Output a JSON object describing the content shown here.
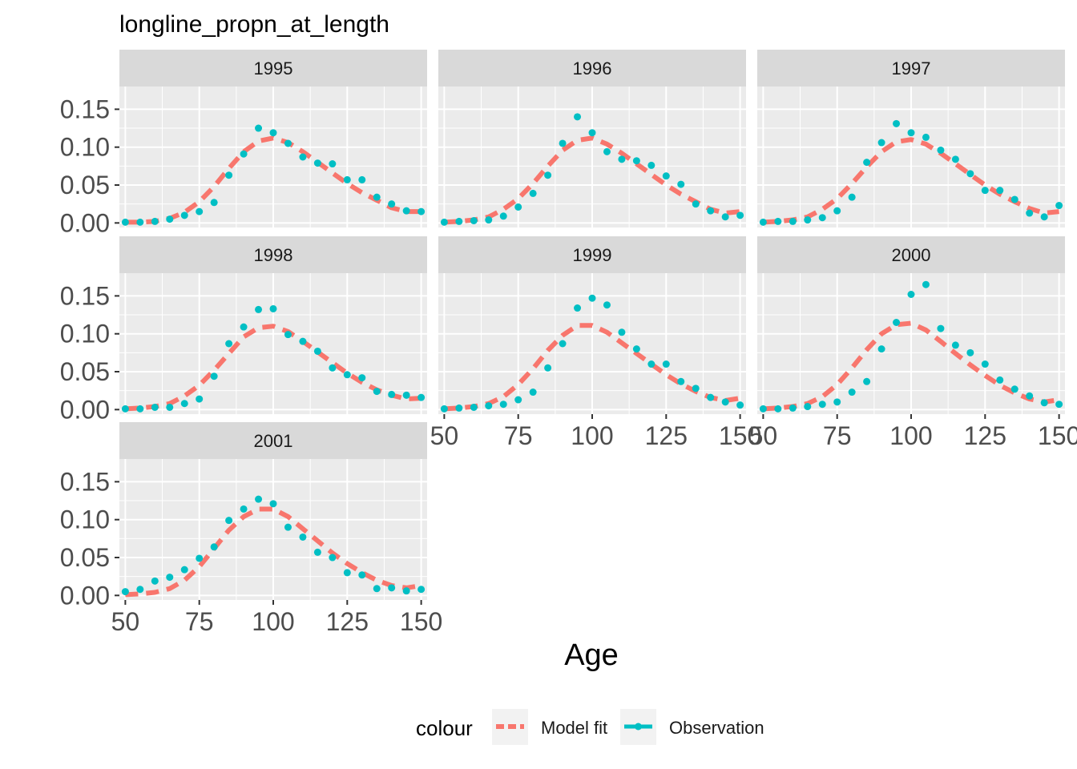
{
  "chart_data": {
    "type": "line",
    "title": "longline_propn_at_length",
    "xlabel": "Age",
    "ylabel": "",
    "xlim": [
      48,
      152
    ],
    "ylim": [
      -0.006,
      0.18
    ],
    "x_ticks": [
      50,
      75,
      100,
      125,
      150
    ],
    "y_ticks": [
      0.0,
      0.05,
      0.1,
      0.15
    ],
    "y_tick_labels": [
      "0.00",
      "0.05",
      "0.10",
      "0.15"
    ],
    "grid": true,
    "legend": {
      "title": "colour",
      "position": "bottom",
      "entries": [
        {
          "label": "Model fit",
          "color": "#F8766D",
          "style": "dashed-line"
        },
        {
          "label": "Observation",
          "color": "#00BFC4",
          "style": "points"
        }
      ]
    },
    "x": [
      50,
      55,
      60,
      65,
      70,
      75,
      80,
      85,
      90,
      95,
      100,
      105,
      110,
      115,
      120,
      125,
      130,
      135,
      140,
      145,
      150
    ],
    "panels": [
      {
        "label": "1995",
        "fit": [
          0.001,
          0.001,
          0.002,
          0.006,
          0.014,
          0.028,
          0.048,
          0.072,
          0.094,
          0.108,
          0.112,
          0.106,
          0.094,
          0.08,
          0.066,
          0.052,
          0.04,
          0.03,
          0.02,
          0.015,
          0.015
        ],
        "obs": [
          0.001,
          0.001,
          0.002,
          0.005,
          0.01,
          0.015,
          0.027,
          0.063,
          0.091,
          0.125,
          0.119,
          0.105,
          0.087,
          0.079,
          0.078,
          0.057,
          0.057,
          0.034,
          0.025,
          0.016,
          0.015
        ]
      },
      {
        "label": "1996",
        "fit": [
          0.001,
          0.002,
          0.004,
          0.008,
          0.018,
          0.032,
          0.052,
          0.075,
          0.096,
          0.109,
          0.112,
          0.104,
          0.092,
          0.078,
          0.064,
          0.05,
          0.038,
          0.028,
          0.018,
          0.013,
          0.015
        ],
        "obs": [
          0.001,
          0.002,
          0.003,
          0.004,
          0.009,
          0.021,
          0.039,
          0.063,
          0.105,
          0.14,
          0.119,
          0.094,
          0.084,
          0.082,
          0.076,
          0.062,
          0.051,
          0.025,
          0.016,
          0.008,
          0.01
        ]
      },
      {
        "label": "1997",
        "fit": [
          0.001,
          0.002,
          0.004,
          0.008,
          0.018,
          0.032,
          0.052,
          0.074,
          0.094,
          0.107,
          0.11,
          0.104,
          0.092,
          0.078,
          0.064,
          0.05,
          0.038,
          0.028,
          0.019,
          0.013,
          0.015
        ],
        "obs": [
          0.001,
          0.002,
          0.002,
          0.004,
          0.007,
          0.016,
          0.034,
          0.08,
          0.106,
          0.131,
          0.119,
          0.113,
          0.096,
          0.084,
          0.065,
          0.043,
          0.043,
          0.031,
          0.013,
          0.008,
          0.023
        ]
      },
      {
        "label": "1998",
        "fit": [
          0.001,
          0.002,
          0.004,
          0.008,
          0.018,
          0.032,
          0.052,
          0.074,
          0.096,
          0.108,
          0.11,
          0.103,
          0.09,
          0.076,
          0.062,
          0.048,
          0.036,
          0.026,
          0.019,
          0.014,
          0.015
        ],
        "obs": [
          0.001,
          0.001,
          0.003,
          0.003,
          0.008,
          0.014,
          0.044,
          0.087,
          0.109,
          0.132,
          0.133,
          0.099,
          0.09,
          0.077,
          0.055,
          0.046,
          0.042,
          0.024,
          0.02,
          0.019,
          0.016
        ]
      },
      {
        "label": "1999",
        "fit": [
          0.001,
          0.002,
          0.004,
          0.008,
          0.017,
          0.033,
          0.054,
          0.078,
          0.098,
          0.111,
          0.111,
          0.102,
          0.088,
          0.074,
          0.06,
          0.046,
          0.034,
          0.024,
          0.016,
          0.012,
          0.015
        ],
        "obs": [
          0.001,
          0.002,
          0.003,
          0.005,
          0.007,
          0.013,
          0.023,
          0.055,
          0.087,
          0.134,
          0.147,
          0.138,
          0.102,
          0.08,
          0.06,
          0.06,
          0.037,
          0.028,
          0.016,
          0.01,
          0.006
        ]
      },
      {
        "label": "2000",
        "fit": [
          0.001,
          0.002,
          0.004,
          0.008,
          0.017,
          0.033,
          0.055,
          0.079,
          0.1,
          0.112,
          0.114,
          0.105,
          0.09,
          0.074,
          0.059,
          0.045,
          0.032,
          0.022,
          0.014,
          0.01,
          0.013
        ],
        "obs": [
          0.001,
          0.001,
          0.002,
          0.004,
          0.007,
          0.01,
          0.023,
          0.037,
          0.08,
          0.115,
          0.152,
          0.165,
          0.107,
          0.085,
          0.075,
          0.06,
          0.039,
          0.027,
          0.018,
          0.009,
          0.007
        ]
      },
      {
        "label": "2001",
        "fit": [
          0.001,
          0.002,
          0.004,
          0.009,
          0.02,
          0.038,
          0.062,
          0.086,
          0.104,
          0.114,
          0.114,
          0.104,
          0.088,
          0.072,
          0.056,
          0.042,
          0.03,
          0.02,
          0.013,
          0.01,
          0.013
        ],
        "obs": [
          0.005,
          0.008,
          0.019,
          0.024,
          0.034,
          0.049,
          0.064,
          0.099,
          0.114,
          0.127,
          0.121,
          0.09,
          0.077,
          0.057,
          0.05,
          0.03,
          0.027,
          0.009,
          0.01,
          0.006,
          0.008
        ]
      }
    ]
  }
}
